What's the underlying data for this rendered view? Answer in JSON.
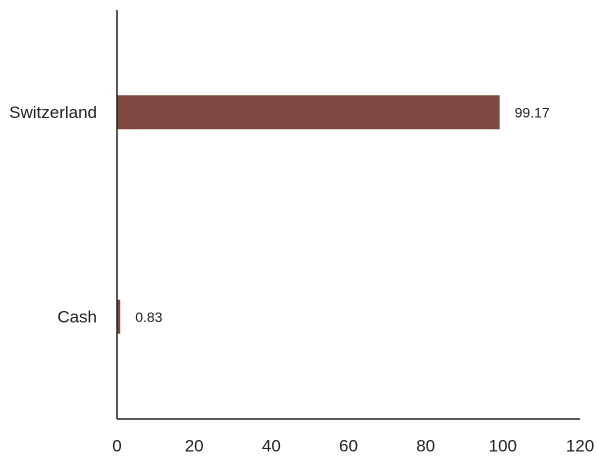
{
  "chart_data": {
    "type": "bar",
    "orientation": "horizontal",
    "categories": [
      "Switzerland",
      "Cash"
    ],
    "values": [
      99.17,
      0.83
    ],
    "value_labels": [
      "99.17",
      "0.83"
    ],
    "xlim": [
      0,
      120
    ],
    "x_ticks": [
      "0",
      "20",
      "40",
      "60",
      "80",
      "100",
      "120"
    ],
    "bar_color": "#7d4840",
    "grid": false,
    "legend": "none"
  }
}
